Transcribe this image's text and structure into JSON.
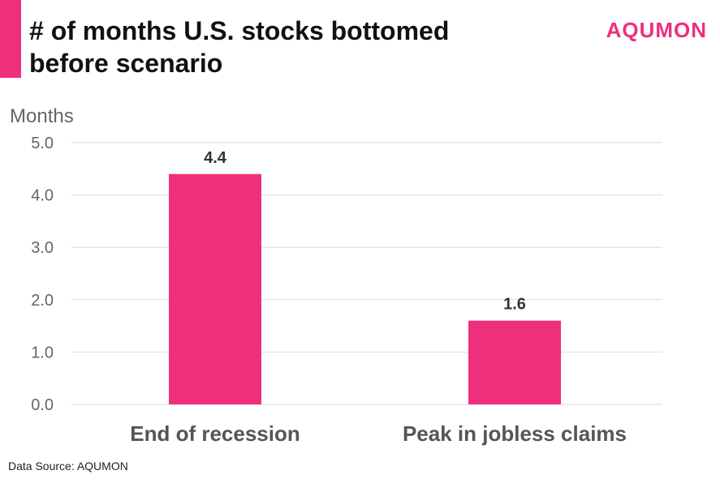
{
  "title": "# of months U.S. stocks bottomed before scenario",
  "logo": "AQUMON",
  "source": "Data Source: AQUMON",
  "colors": {
    "accent": "#ee2f7c",
    "bar": "#ee2f7c",
    "grid": "#dddddd",
    "axis_text": "#666666",
    "category_text": "#555555"
  },
  "chart_data": {
    "type": "bar",
    "ylabel": "Months",
    "categories": [
      "End of recession",
      "Peak in jobless claims"
    ],
    "values": [
      4.4,
      1.6
    ],
    "data_labels": [
      "4.4",
      "1.6"
    ],
    "ylim": [
      0,
      5
    ],
    "yticks": [
      "0.0",
      "1.0",
      "2.0",
      "3.0",
      "4.0",
      "5.0"
    ],
    "grid": true,
    "legend": "none"
  }
}
